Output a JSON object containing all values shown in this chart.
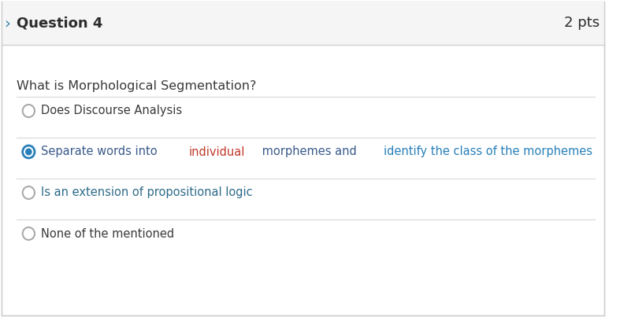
{
  "header_bg": "#f5f5f5",
  "body_bg": "#ffffff",
  "border_color": "#d0d0d0",
  "header_text": "Question 4",
  "header_pts": "2 pts",
  "header_text_color": "#2c2c2c",
  "header_fontsize": 13,
  "pts_fontsize": 13,
  "question_text": "What is Morphological Segmentation?",
  "question_color": "#3a3a3a",
  "question_fontsize": 11.5,
  "arrow_color": "#2e86ab",
  "divider_color": "#d8d8d8",
  "options": [
    {
      "text": "Does Discourse Analysis",
      "selected": false,
      "color": "#3a3a3a"
    },
    {
      "text_parts": [
        {
          "text": "Separate words into ",
          "color": "#3a5a8a"
        },
        {
          "text": "individual",
          "color": "#c0392b"
        },
        {
          "text": " morphemes and ",
          "color": "#3a5a8a"
        },
        {
          "text": "identify the class of the morphemes",
          "color": "#2980b9"
        }
      ],
      "selected": true,
      "radio_outer": "#2980b9",
      "radio_inner": "#2980b9"
    },
    {
      "text": "Is an extension of propositional logic",
      "selected": false,
      "color": "#2e6b8a"
    },
    {
      "text": "None of the mentioned",
      "selected": false,
      "color": "#3a3a3a"
    }
  ],
  "option_fontsize": 10.5,
  "radio_unselected_color": "#aaaaaa",
  "radio_selected_outer": "#2980b9",
  "radio_selected_inner": "#2980b9"
}
